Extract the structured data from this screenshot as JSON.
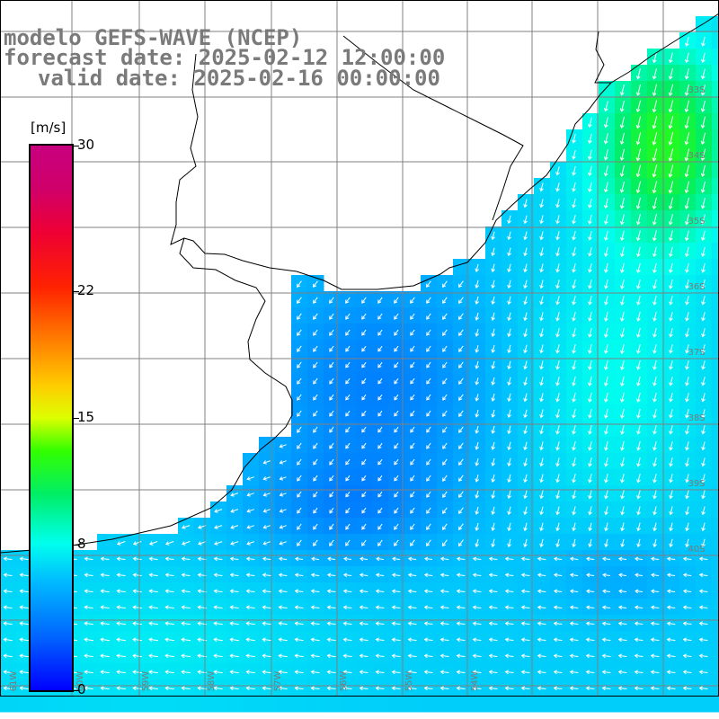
{
  "titles": {
    "line1": "modelo GEFS-WAVE (NCEP)",
    "line2": "forecast date: 2025-02-12 12:00:00",
    "line3": "valid date: 2025-02-16 00:00:00"
  },
  "colorbar": {
    "unit": "[m/s]",
    "min": 0,
    "max": 30,
    "ticks": [
      "0",
      "8",
      "15",
      "22",
      "30"
    ],
    "colors": [
      "#0000ff",
      "#0066ff",
      "#00bbff",
      "#00ffee",
      "#00ee66",
      "#33ff00",
      "#ddff00",
      "#ffcc00",
      "#ff7700",
      "#ff2200",
      "#ee0033",
      "#c8007f"
    ]
  },
  "grid": {
    "lat_labels": [
      "33S",
      "34S",
      "35S",
      "36S",
      "37S",
      "38S",
      "39S",
      "40S"
    ],
    "lon_labels": [
      "61W",
      "60W",
      "59W",
      "58W",
      "57W",
      "56W",
      "55W",
      "54W"
    ]
  },
  "colors": {
    "land": "#ffffff",
    "coast": "#000000",
    "grid": "#808080",
    "arrow": "#ffffff",
    "label": "#7a7a7a"
  }
}
